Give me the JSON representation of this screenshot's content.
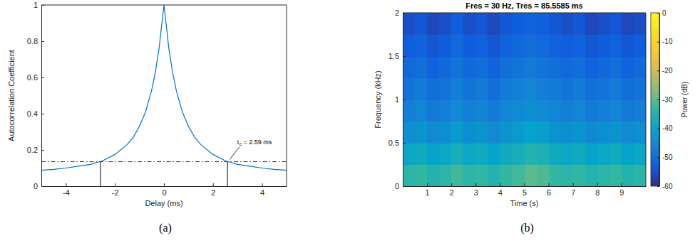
{
  "chart_data": [
    {
      "type": "line",
      "panel_label": "(a)",
      "x_label": "Delay (ms)",
      "y_label": "Autocorrelation Coefficient",
      "xlim": [
        -5,
        5
      ],
      "ylim": [
        0,
        1
      ],
      "xticks": [
        -4,
        -2,
        0,
        2,
        4
      ],
      "yticks": [
        0,
        0.2,
        0.4,
        0.6,
        0.8,
        1
      ],
      "color": "#0072bd",
      "x": [
        -5,
        -4.5,
        -4,
        -3.5,
        -3,
        -2.5,
        -2,
        -1.5,
        -1.25,
        -1,
        -0.75,
        -0.5,
        -0.35,
        -0.2,
        -0.1,
        0,
        0.1,
        0.2,
        0.35,
        0.5,
        0.75,
        1,
        1.25,
        1.5,
        2,
        2.5,
        3,
        3.5,
        4,
        4.5,
        5
      ],
      "values": [
        0.088,
        0.093,
        0.1,
        0.11,
        0.12,
        0.14,
        0.175,
        0.23,
        0.27,
        0.33,
        0.41,
        0.53,
        0.63,
        0.76,
        0.88,
        1.0,
        0.88,
        0.76,
        0.63,
        0.53,
        0.41,
        0.33,
        0.27,
        0.23,
        0.175,
        0.14,
        0.12,
        0.11,
        0.1,
        0.093,
        0.088
      ],
      "threshold": 0.135,
      "crossings": [
        -2.59,
        2.59
      ],
      "annotation": {
        "symbol": "τ",
        "subscript": "c",
        "text": " = 2.59 ms"
      }
    },
    {
      "type": "heatmap",
      "panel_label": "(b)",
      "title": "Fres = 30 Hz, Tres = 85.5585 ms",
      "x_label": "Time (s)",
      "y_label": "Frequency (kHz)",
      "xlim": [
        0,
        10
      ],
      "ylim": [
        0,
        2
      ],
      "xticks": [
        1,
        2,
        3,
        4,
        5,
        6,
        7,
        8,
        9
      ],
      "yticks": [
        0,
        0.5,
        1,
        1.5,
        2
      ],
      "x_bins": [
        0,
        0.5,
        1,
        1.5,
        2,
        2.5,
        3,
        3.5,
        4,
        4.5,
        5,
        5.5,
        6,
        6.5,
        7,
        7.5,
        8,
        8.5,
        9,
        9.5,
        10
      ],
      "y_bins": [
        0,
        0.25,
        0.5,
        0.75,
        1,
        1.25,
        1.5,
        1.75,
        2
      ],
      "values": [
        [
          -34,
          -33,
          -35,
          -34,
          -32,
          -34,
          -33,
          -35,
          -33,
          -32,
          -30,
          -31,
          -33,
          -34,
          -33,
          -35,
          -34,
          -33,
          -35,
          -34
        ],
        [
          -39,
          -38,
          -40,
          -39,
          -37,
          -39,
          -38,
          -40,
          -38,
          -37,
          -35,
          -36,
          -38,
          -39,
          -38,
          -40,
          -39,
          -38,
          -40,
          -39
        ],
        [
          -44,
          -43,
          -45,
          -44,
          -42,
          -44,
          -43,
          -45,
          -43,
          -42,
          -40,
          -41,
          -43,
          -44,
          -43,
          -45,
          -44,
          -43,
          -45,
          -44
        ],
        [
          -47,
          -46,
          -48,
          -47,
          -45,
          -47,
          -46,
          -48,
          -46,
          -45,
          -44,
          -45,
          -46,
          -47,
          -46,
          -48,
          -47,
          -46,
          -48,
          -47
        ],
        [
          -49,
          -48,
          -50,
          -49,
          -47,
          -49,
          -48,
          -50,
          -48,
          -47,
          -46,
          -47,
          -48,
          -49,
          -48,
          -50,
          -49,
          -48,
          -50,
          -49
        ],
        [
          -51,
          -50,
          -52,
          -51,
          -49,
          -51,
          -50,
          -52,
          -50,
          -49,
          -48,
          -49,
          -50,
          -51,
          -50,
          -52,
          -51,
          -50,
          -52,
          -51
        ],
        [
          -53,
          -52,
          -54,
          -53,
          -51,
          -53,
          -52,
          -54,
          -52,
          -51,
          -50,
          -51,
          -52,
          -53,
          -52,
          -54,
          -53,
          -52,
          -54,
          -53
        ],
        [
          -55,
          -54,
          -56,
          -55,
          -53,
          -55,
          -54,
          -56,
          -54,
          -53,
          -52,
          -53,
          -54,
          -55,
          -54,
          -56,
          -55,
          -54,
          -56,
          -55
        ]
      ],
      "colorbar": {
        "label": "Power (dB)",
        "range": [
          -60,
          0
        ],
        "ticks": [
          -60,
          -50,
          -40,
          -30,
          -20,
          -10,
          0
        ]
      }
    }
  ]
}
